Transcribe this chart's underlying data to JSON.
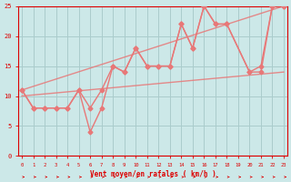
{
  "x_labels": [
    0,
    1,
    2,
    3,
    4,
    5,
    6,
    7,
    8,
    9,
    10,
    11,
    12,
    13,
    14,
    15,
    16,
    17,
    18,
    19,
    20,
    21,
    22,
    23
  ],
  "zigzag1_x": [
    0,
    1,
    2,
    3,
    4,
    5,
    6,
    7,
    8,
    9,
    10,
    11,
    12,
    13,
    14,
    15,
    16,
    17,
    18,
    20,
    21,
    22,
    23
  ],
  "zigzag1_y": [
    11,
    8,
    8,
    8,
    8,
    11,
    8,
    11,
    15,
    14,
    18,
    15,
    15,
    15,
    22,
    18,
    25,
    22,
    22,
    14,
    15,
    25,
    25
  ],
  "zigzag2_x": [
    0,
    1,
    2,
    3,
    4,
    5,
    6,
    7,
    8,
    9,
    10,
    11,
    12,
    13,
    14,
    15,
    16,
    17,
    18,
    20,
    21,
    22,
    23
  ],
  "zigzag2_y": [
    11,
    8,
    8,
    8,
    8,
    11,
    4,
    8,
    15,
    14,
    18,
    15,
    15,
    15,
    22,
    18,
    25,
    22,
    22,
    14,
    14,
    25,
    25
  ],
  "trend1_x": [
    0,
    23
  ],
  "trend1_y": [
    11,
    25
  ],
  "trend2_x": [
    0,
    23
  ],
  "trend2_y": [
    10,
    14
  ],
  "line_color": "#e87878",
  "bg_color": "#cce8e8",
  "grid_color": "#aacccc",
  "tick_color": "#dd0000",
  "xlabel": "Vent moyen/en rafales ( km/h )",
  "ylim": [
    0,
    25
  ],
  "xlim": [
    0,
    23
  ],
  "yticks": [
    0,
    5,
    10,
    15,
    20,
    25
  ],
  "arrow_color": "#dd0000"
}
